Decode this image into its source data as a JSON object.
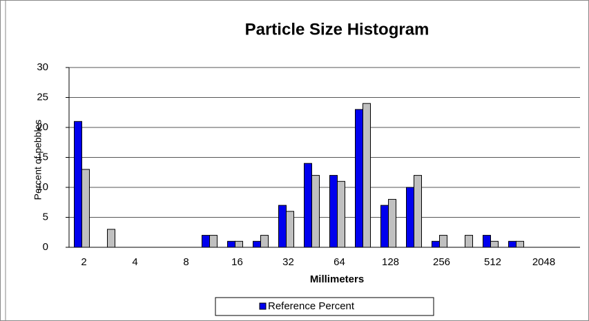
{
  "chart_data": {
    "type": "bar",
    "title": "Particle Size Histogram",
    "x_label": "Millimeters",
    "y_label": "Percent of pebbles",
    "categories": [
      "2",
      null,
      "4",
      null,
      "8",
      null,
      "16",
      null,
      "32",
      null,
      "64",
      null,
      "128",
      null,
      "256",
      null,
      "512",
      null,
      "2048",
      null
    ],
    "series": [
      {
        "name": "Reference Percent",
        "color": "#0000ee",
        "values": [
          21,
          0,
          0,
          0,
          0,
          2,
          1,
          1,
          7,
          14,
          12,
          23,
          7,
          10,
          1,
          0,
          2,
          1,
          0,
          0
        ]
      },
      {
        "color": "#c0c0c0",
        "values": [
          13,
          3,
          0,
          0,
          0,
          2,
          1,
          2,
          6,
          12,
          11,
          24,
          8,
          12,
          2,
          2,
          1,
          1,
          0,
          0
        ]
      }
    ],
    "ylim": [
      0,
      30
    ],
    "yticks": [
      0,
      5,
      10,
      15,
      20,
      25,
      30
    ],
    "grid": true,
    "legend": "bottom"
  }
}
